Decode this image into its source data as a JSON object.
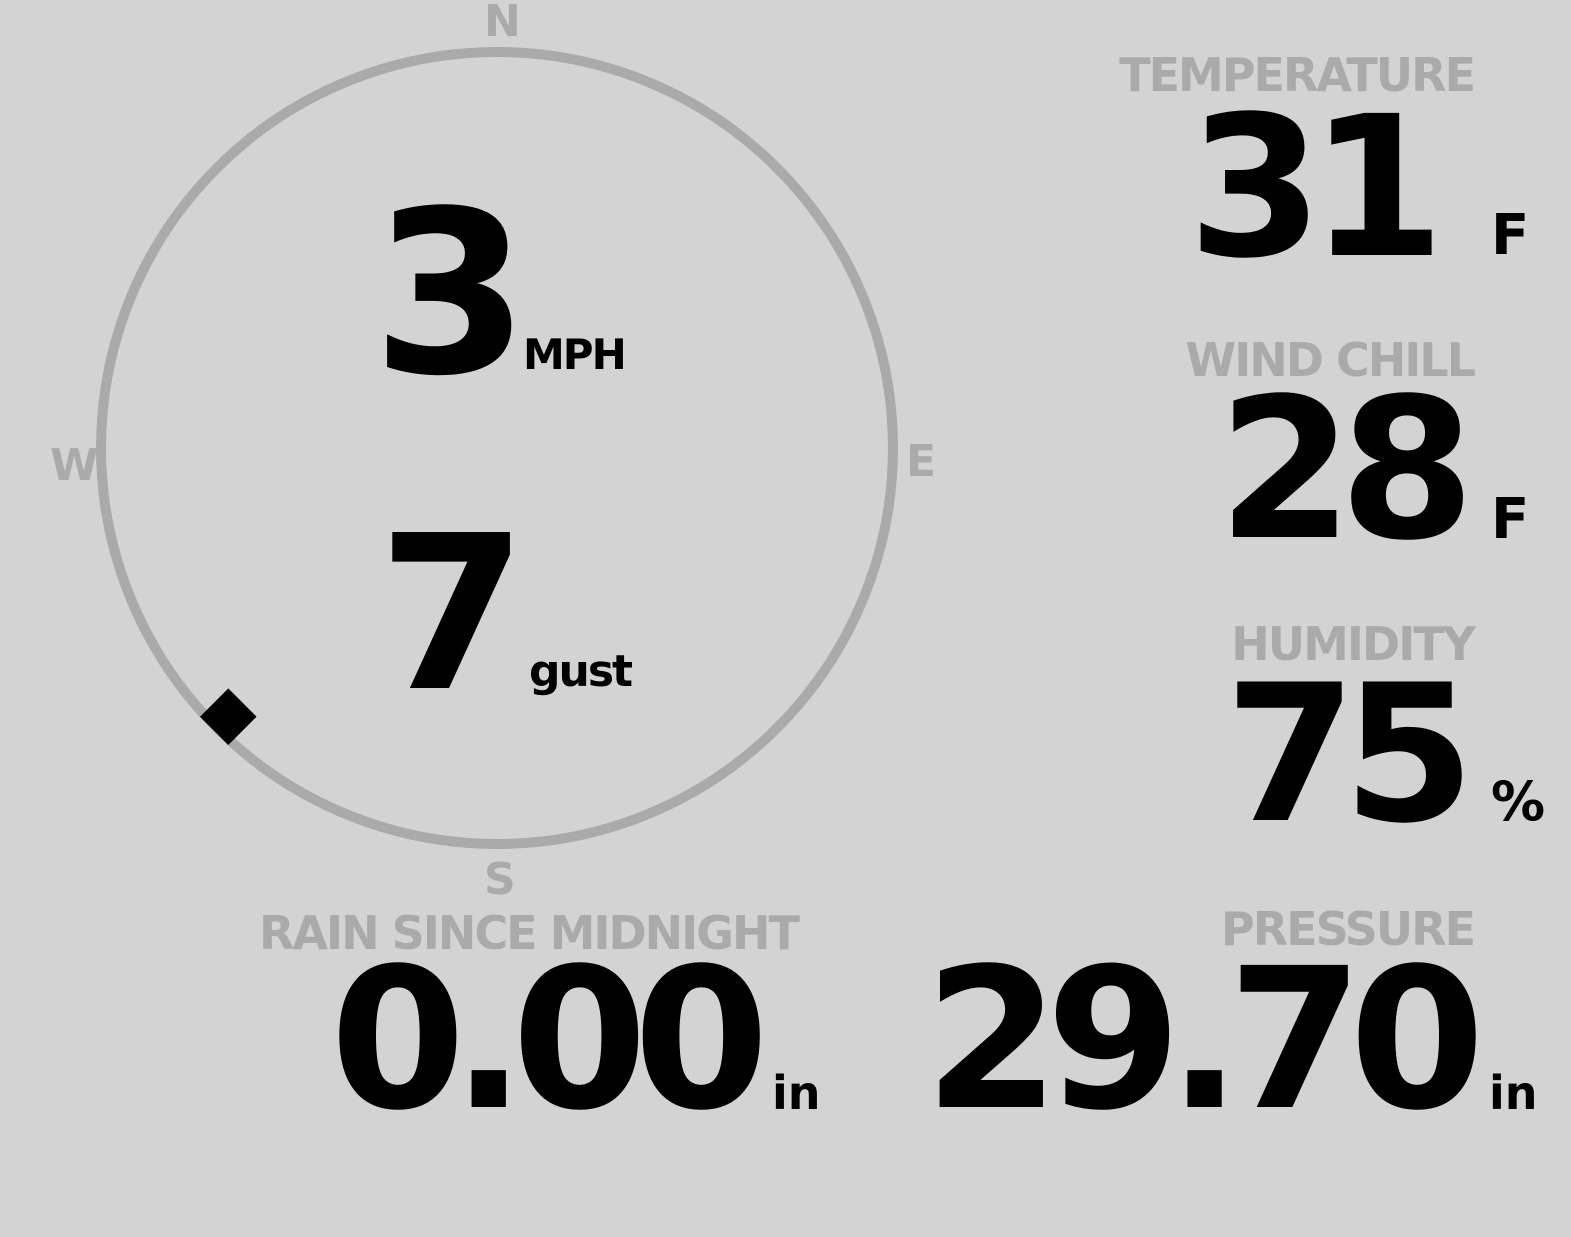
{
  "wind": {
    "compass": {
      "n": "N",
      "e": "E",
      "s": "S",
      "w": "W"
    },
    "direction_deg": 225,
    "speed": "3",
    "speed_unit": "MPH",
    "gust": "7",
    "gust_unit": "gust",
    "colors": {
      "ring": "#aaaaaa",
      "pointer": "#000000"
    }
  },
  "temperature": {
    "label": "TEMPERATURE",
    "value": "31",
    "unit": "F"
  },
  "wind_chill": {
    "label": "WIND CHILL",
    "value": "28",
    "unit": "F"
  },
  "humidity": {
    "label": "HUMIDITY",
    "value": "75",
    "unit": "%"
  },
  "rain": {
    "label": "RAIN SINCE MIDNIGHT",
    "value": "0.00",
    "unit": "in"
  },
  "pressure": {
    "label": "PRESSURE",
    "value": "29.70",
    "unit": "in"
  },
  "colors": {
    "background": "#d3d3d3",
    "label": "#aaaaaa",
    "value": "#000000"
  }
}
